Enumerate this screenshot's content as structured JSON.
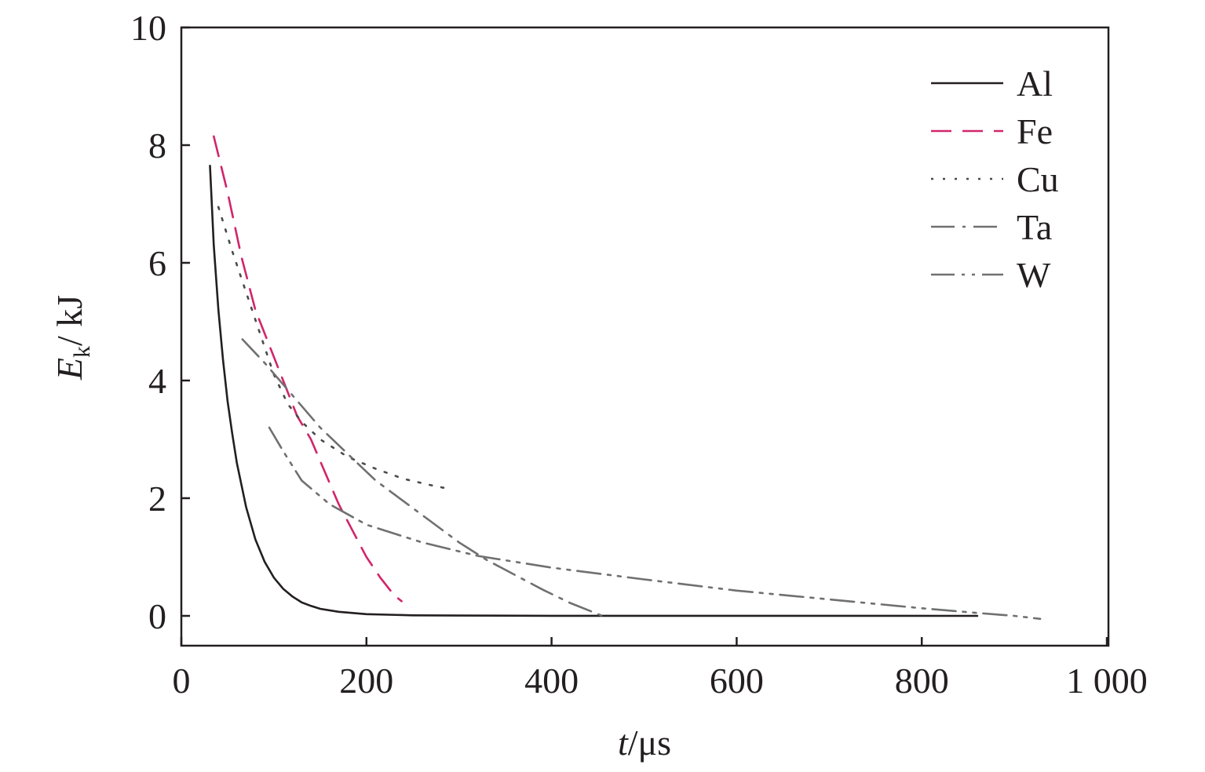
{
  "chart_data": {
    "type": "line",
    "title": "",
    "xlabel": {
      "var": "t",
      "unit": "/μs"
    },
    "ylabel": {
      "var": "E",
      "sub": "k",
      "unit": "/ kJ"
    },
    "xlim": [
      0,
      1000
    ],
    "ylim": [
      -0.5,
      10
    ],
    "xticks": [
      0,
      200,
      400,
      600,
      800,
      1000
    ],
    "xtick_labels": [
      "0",
      "200",
      "400",
      "600",
      "800",
      "1 000"
    ],
    "yticks": [
      0,
      2,
      4,
      6,
      8,
      10
    ],
    "ytick_labels": [
      "0",
      "2",
      "4",
      "6",
      "8",
      "10"
    ],
    "grid": false,
    "legend_position": "top-right",
    "series": [
      {
        "name": "Al",
        "color": "#231f20",
        "dash": "solid",
        "points": [
          [
            31,
            7.65
          ],
          [
            35,
            6.3
          ],
          [
            40,
            5.2
          ],
          [
            45,
            4.35
          ],
          [
            50,
            3.65
          ],
          [
            55,
            3.1
          ],
          [
            60,
            2.6
          ],
          [
            70,
            1.85
          ],
          [
            80,
            1.3
          ],
          [
            90,
            0.92
          ],
          [
            100,
            0.65
          ],
          [
            110,
            0.46
          ],
          [
            120,
            0.33
          ],
          [
            130,
            0.23
          ],
          [
            140,
            0.17
          ],
          [
            150,
            0.12
          ],
          [
            170,
            0.07
          ],
          [
            200,
            0.03
          ],
          [
            250,
            0.01
          ],
          [
            300,
            0.005
          ],
          [
            400,
            0.002
          ],
          [
            600,
            0.001
          ],
          [
            860,
            0.0
          ]
        ]
      },
      {
        "name": "Fe",
        "color": "#d1256b",
        "dash": "dashed",
        "points": [
          [
            35,
            8.15
          ],
          [
            50,
            7.2
          ],
          [
            65,
            6.1
          ],
          [
            80,
            5.2
          ],
          [
            95,
            4.6
          ],
          [
            110,
            4.0
          ],
          [
            125,
            3.4
          ],
          [
            140,
            3.0
          ],
          [
            155,
            2.45
          ],
          [
            170,
            1.9
          ],
          [
            185,
            1.45
          ],
          [
            200,
            1.0
          ],
          [
            215,
            0.65
          ],
          [
            230,
            0.35
          ],
          [
            238,
            0.25
          ]
        ]
      },
      {
        "name": "Cu",
        "color": "#4a4a4a",
        "dash": "dotted",
        "points": [
          [
            40,
            6.95
          ],
          [
            55,
            6.2
          ],
          [
            70,
            5.5
          ],
          [
            85,
            4.8
          ],
          [
            100,
            4.1
          ],
          [
            115,
            3.6
          ],
          [
            130,
            3.3
          ],
          [
            150,
            3.0
          ],
          [
            180,
            2.7
          ],
          [
            210,
            2.5
          ],
          [
            240,
            2.33
          ],
          [
            270,
            2.22
          ],
          [
            292,
            2.15
          ]
        ]
      },
      {
        "name": "Ta",
        "color": "#707070",
        "dash": "dashdot",
        "points": [
          [
            66,
            4.7
          ],
          [
            90,
            4.3
          ],
          [
            120,
            3.75
          ],
          [
            150,
            3.2
          ],
          [
            180,
            2.75
          ],
          [
            210,
            2.3
          ],
          [
            240,
            1.95
          ],
          [
            270,
            1.6
          ],
          [
            300,
            1.25
          ],
          [
            330,
            0.95
          ],
          [
            360,
            0.7
          ],
          [
            390,
            0.45
          ],
          [
            420,
            0.22
          ],
          [
            455,
            0.0
          ]
        ]
      },
      {
        "name": "W",
        "color": "#707070",
        "dash": "dashdotdot",
        "points": [
          [
            95,
            3.2
          ],
          [
            110,
            2.8
          ],
          [
            130,
            2.3
          ],
          [
            160,
            1.9
          ],
          [
            200,
            1.55
          ],
          [
            260,
            1.25
          ],
          [
            320,
            1.02
          ],
          [
            400,
            0.82
          ],
          [
            500,
            0.62
          ],
          [
            600,
            0.43
          ],
          [
            700,
            0.28
          ],
          [
            800,
            0.13
          ],
          [
            860,
            0.05
          ],
          [
            900,
            0.0
          ],
          [
            928,
            -0.05
          ]
        ]
      }
    ]
  }
}
